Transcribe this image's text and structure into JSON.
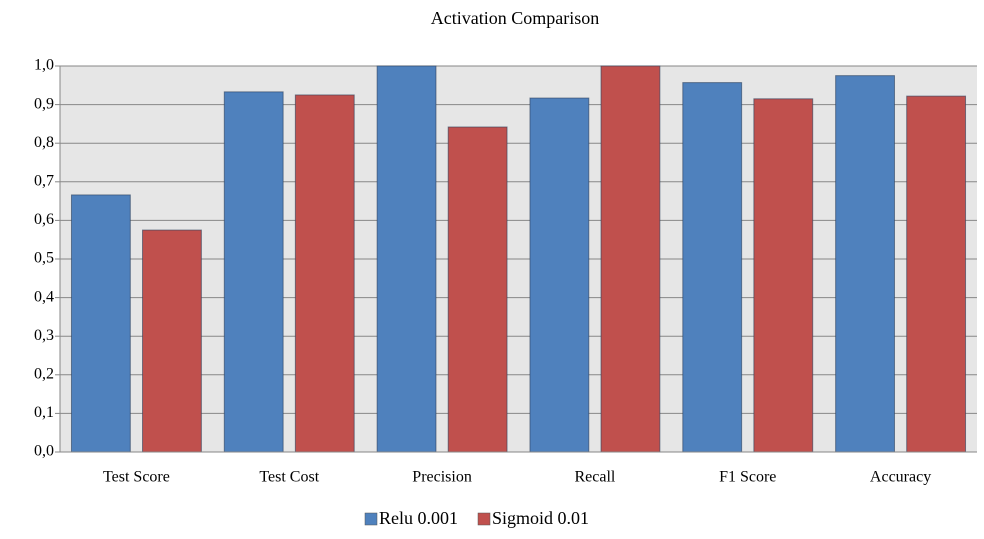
{
  "chart_data": {
    "type": "bar",
    "title": "Activation Comparison",
    "categories": [
      "Test Score",
      "Test Cost",
      "Precision",
      "Recall",
      "F1 Score",
      "Accuracy"
    ],
    "series": [
      {
        "name": "Relu 0.001",
        "color": "#4f81bd",
        "values": [
          0.666,
          0.933,
          1.0,
          0.917,
          0.957,
          0.975
        ]
      },
      {
        "name": "Sigmoid 0.01",
        "color": "#c0504d",
        "values": [
          0.575,
          0.925,
          0.842,
          1.0,
          0.915,
          0.922
        ]
      }
    ],
    "ylim": [
      0,
      1
    ],
    "yticks": [
      {
        "value": 0,
        "label": "0,0"
      },
      {
        "value": 0.1,
        "label": "0,1"
      },
      {
        "value": 0.2,
        "label": "0,2"
      },
      {
        "value": 0.3,
        "label": "0,3"
      },
      {
        "value": 0.4,
        "label": "0,4"
      },
      {
        "value": 0.5,
        "label": "0,5"
      },
      {
        "value": 0.6,
        "label": "0,6"
      },
      {
        "value": 0.7,
        "label": "0,7"
      },
      {
        "value": 0.8,
        "label": "0,8"
      },
      {
        "value": 0.9,
        "label": "0,9"
      },
      {
        "value": 1,
        "label": "1,0"
      }
    ],
    "grid": true,
    "legend": "bottom"
  }
}
